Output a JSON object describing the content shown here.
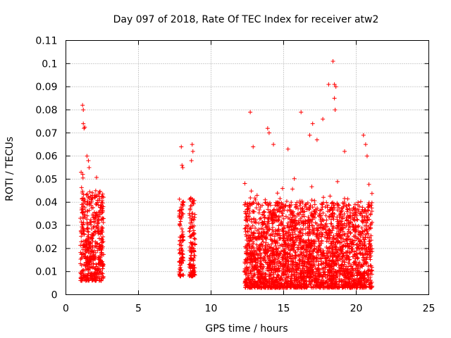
{
  "chart_data": {
    "type": "scatter",
    "title": "Day 097 of 2018, Rate Of TEC Index for receiver atw2",
    "xlabel": "GPS time / hours",
    "ylabel": "ROTI / TECUs",
    "xlim": [
      0,
      25
    ],
    "ylim": [
      0,
      0.11
    ],
    "xticks": [
      0,
      5,
      10,
      15,
      20,
      25
    ],
    "yticks": [
      0,
      0.01,
      0.02,
      0.03,
      0.04,
      0.05,
      0.06,
      0.07,
      0.08,
      0.09,
      0.1,
      0.11
    ],
    "xtick_labels": [
      "0",
      "5",
      "10",
      "15",
      "20",
      "25"
    ],
    "ytick_labels": [
      "0",
      "0.01",
      "0.02",
      "0.03",
      "0.04",
      "0.05",
      "0.06",
      "0.07",
      "0.08",
      "0.09",
      "0.1",
      "0.11"
    ],
    "grid": true,
    "marker": "+",
    "color": "#ff0000",
    "series": [
      {
        "name": "ROTI",
        "segments": [
          {
            "x_start": 1.0,
            "x_end": 2.6,
            "y_min": 0.006,
            "y_typ_high": 0.045
          },
          {
            "x_start": 7.8,
            "x_end": 8.1,
            "y_min": 0.008,
            "y_typ_high": 0.042
          },
          {
            "x_start": 8.5,
            "x_end": 8.9,
            "y_min": 0.008,
            "y_typ_high": 0.042
          },
          {
            "x_start": 12.3,
            "x_end": 21.1,
            "y_min": 0.003,
            "y_typ_high": 0.04
          }
        ],
        "x": [
          1.15,
          1.2,
          1.2,
          1.25,
          1.3,
          1.05,
          1.45,
          1.55,
          1.6,
          7.95,
          8.0,
          8.05,
          8.7,
          8.75,
          8.65,
          12.7,
          12.9,
          13.9,
          14.0,
          14.3,
          15.3,
          16.2,
          16.8,
          17.0,
          17.3,
          17.7,
          18.1,
          18.4,
          18.5,
          18.6,
          18.5,
          18.55,
          19.2,
          20.5,
          20.65,
          20.75
        ],
        "y": [
          0.082,
          0.08,
          0.074,
          0.072,
          0.0725,
          0.053,
          0.06,
          0.058,
          0.055,
          0.064,
          0.056,
          0.055,
          0.065,
          0.062,
          0.058,
          0.079,
          0.064,
          0.072,
          0.07,
          0.065,
          0.063,
          0.079,
          0.069,
          0.074,
          0.067,
          0.076,
          0.091,
          0.101,
          0.091,
          0.09,
          0.085,
          0.08,
          0.062,
          0.069,
          0.065,
          0.06
        ]
      }
    ]
  }
}
